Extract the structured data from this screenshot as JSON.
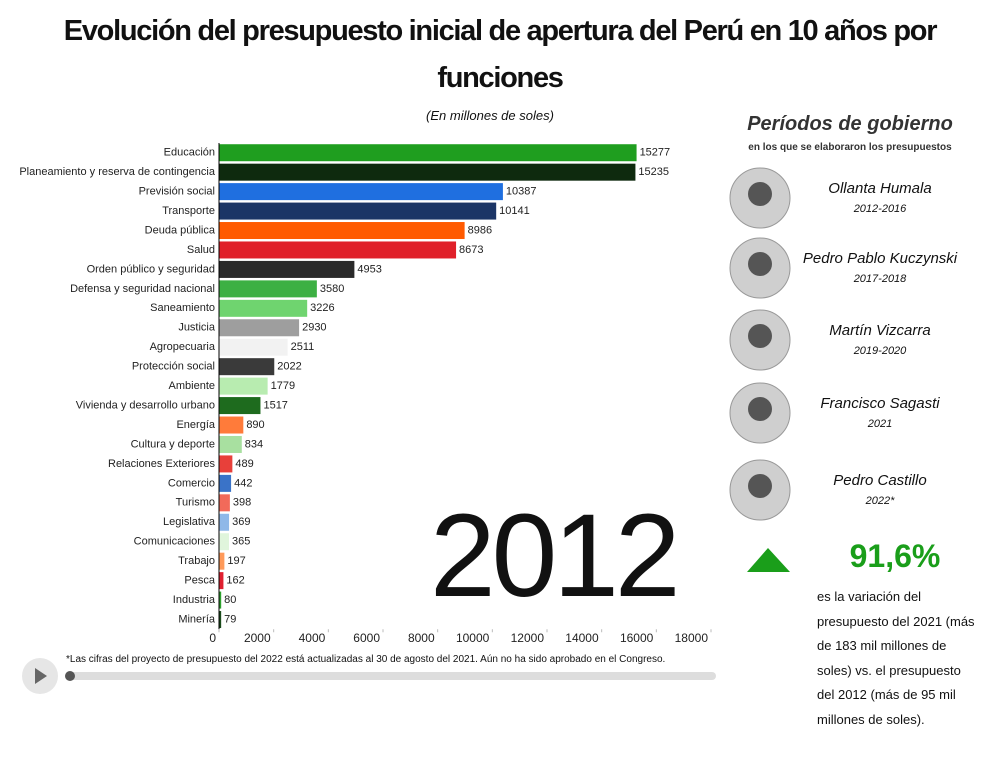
{
  "chart_data": {
    "type": "hbar",
    "title": "Evolución del presupuesto inicial de apertura del Perú en 10 años por funciones",
    "subtitle": "(En millones de soles)",
    "annotation": "2012",
    "footnote": "*Las cifras del proyecto de presupuesto del 2022 está actualizadas al 30 de agosto del 2021. Aún no ha sido aprobado en el Congreso.",
    "categories": [
      "Educación",
      "Planeamiento y reserva de contingencia",
      "Previsión social",
      "Transporte",
      "Deuda pública",
      "Salud",
      "Orden público y seguridad",
      "Defensa y seguridad nacional",
      "Saneamiento",
      "Justicia",
      "Agropecuaria",
      "Protección social",
      "Ambiente",
      "Vivienda y desarrollo urbano",
      "Energía",
      "Cultura y deporte",
      "Relaciones Exteriores",
      "Comercio",
      "Turismo",
      "Legislativa",
      "Comunicaciones",
      "Trabajo",
      "Pesca",
      "Industria",
      "Minería"
    ],
    "values": [
      15277,
      15235,
      10387,
      10141,
      8986,
      8673,
      4953,
      3580,
      3226,
      2930,
      2511,
      2022,
      1779,
      1517,
      890,
      834,
      489,
      442,
      398,
      369,
      365,
      197,
      162,
      80,
      79
    ],
    "colors": [
      "#1f9e1f",
      "#0e2a0e",
      "#1f6fe0",
      "#1b3566",
      "#ff5a00",
      "#e0202a",
      "#2a2a2a",
      "#3cb043",
      "#6fd46f",
      "#9e9e9e",
      "#f2f2f2",
      "#3a3a3a",
      "#b8ecb0",
      "#1e6b1e",
      "#ff7b3a",
      "#a8e0a0",
      "#e8403a",
      "#3a73c8",
      "#f26a5a",
      "#8fb8e8",
      "#e0f5dc",
      "#ff9a5a",
      "#e02030",
      "#2ca02c",
      "#1a4a1a"
    ],
    "xlim": [
      0,
      18000
    ],
    "xticks": [
      0,
      2000,
      4000,
      6000,
      8000,
      10000,
      12000,
      14000,
      16000,
      18000
    ]
  },
  "sidebar": {
    "title": "Períodos de gobierno",
    "subtitle": "en los que se elaboraron los presupuestos",
    "governments": [
      {
        "name": "Ollanta Humala",
        "period": "2012-2016"
      },
      {
        "name": "Pedro Pablo Kuczynski",
        "period": "2017-2018"
      },
      {
        "name": "Martín Vizcarra",
        "period": "2019-2020"
      },
      {
        "name": "Francisco Sagasti",
        "period": "2021"
      },
      {
        "name": "Pedro Castillo",
        "period": "2022*"
      }
    ],
    "variation": "91,6%",
    "description": "es la variación del presupuesto del 2021 (más de 183 mil millones de soles) vs. el presupuesto del 2012 (más de 95 mil millones de soles)."
  }
}
